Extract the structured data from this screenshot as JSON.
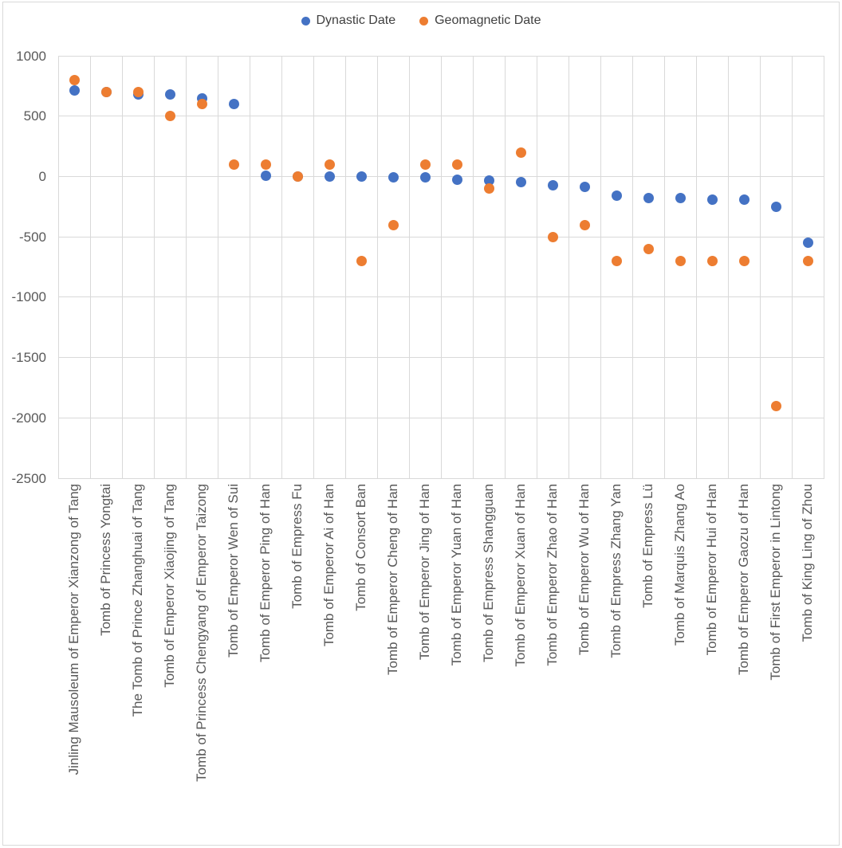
{
  "chart_data": {
    "type": "scatter",
    "title": "",
    "legend_position": "top",
    "grid": true,
    "ylim": [
      -2500,
      1000
    ],
    "y_ticks": [
      1000,
      500,
      0,
      -500,
      -1000,
      -1500,
      -2000,
      -2500
    ],
    "categories": [
      "Jinling Mausoleum of Emperor Xianzong of Tang",
      "Tomb of Princess Yongtai",
      "The Tomb of Prince Zhanghuai of Tang",
      "Tomb of Emperor Xiaojing of Tang",
      "Tomb of Princess Chengyang of Emperor Taizong",
      "Tomb of Emperor Wen of Sui",
      "Tomb of Emperor Ping of Han",
      "Tomb of Empress Fu",
      "Tomb of Emperor Ai of Han",
      "Tomb of Consort Ban",
      "Tomb of Emperor Cheng of Han",
      "Tomb of Emperor Jing of Han",
      "Tomb of Emperor Yuan of Han",
      "Tomb of Empress Shangguan",
      "Tomb of Emperor Xuan of Han",
      "Tomb of Emperor Zhao of Han",
      "Tomb of Emperor Wu of Han",
      "Tomb of Empress Zhang Yan",
      "Tomb of Empress Lü",
      "Tomb of Marquis Zhang Ao",
      "Tomb of Emperor Hui of Han",
      "Tomb of Emperor Gaozu of Han",
      "Tomb of First Emperor in Lintong",
      "Tomb of King Ling of Zhou"
    ],
    "series": [
      {
        "name": "Dynastic Date",
        "color": "#4472C4",
        "values": [
          710,
          700,
          680,
          680,
          650,
          600,
          5,
          0,
          0,
          0,
          -10,
          -10,
          -30,
          -35,
          -45,
          -70,
          -85,
          -160,
          -180,
          -180,
          -190,
          -195,
          -250,
          -550
        ]
      },
      {
        "name": "Geomagnetic Date",
        "color": "#ED7D31",
        "values": [
          800,
          700,
          700,
          500,
          600,
          100,
          100,
          0,
          100,
          -700,
          -400,
          100,
          100,
          -100,
          200,
          -500,
          -400,
          -700,
          -600,
          -700,
          -700,
          -700,
          -1900,
          -700
        ]
      }
    ]
  },
  "colors": {
    "gridline": "#D9D9D9",
    "axis_text": "#595959",
    "legend_text": "#404040",
    "background": "#FFFFFF",
    "series_dynastic": "#4472C4",
    "series_geomagnetic": "#ED7D31"
  }
}
